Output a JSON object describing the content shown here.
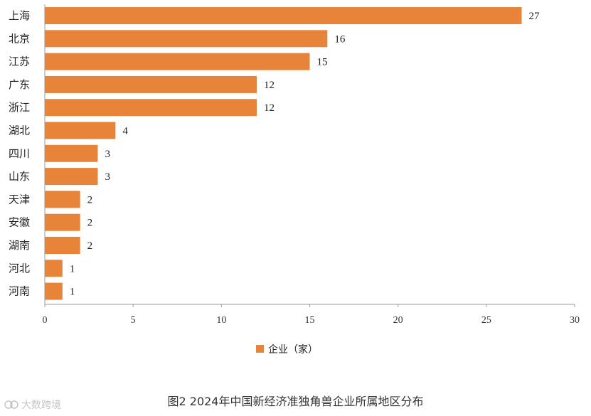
{
  "colors": {
    "bar": "#E8833A",
    "axis": "#999999",
    "text": "#222222"
  },
  "caption": "图2 2024年中国新经济准独角兽企业所属地区分布",
  "watermark": "大数跨境",
  "chart_data": {
    "type": "bar",
    "orientation": "horizontal",
    "categories": [
      "上海",
      "北京",
      "江苏",
      "广东",
      "浙江",
      "湖北",
      "四川",
      "山东",
      "天津",
      "安徽",
      "湖南",
      "河北",
      "河南"
    ],
    "values": [
      27,
      16,
      15,
      12,
      12,
      4,
      3,
      3,
      2,
      2,
      2,
      1,
      1
    ],
    "series": [
      {
        "name": "企业（家）",
        "values": [
          27,
          16,
          15,
          12,
          12,
          4,
          3,
          3,
          2,
          2,
          2,
          1,
          1
        ]
      }
    ],
    "xlim": [
      0,
      30
    ],
    "xticks": [
      0,
      5,
      10,
      15,
      20,
      25,
      30
    ],
    "grid": false,
    "legend": {
      "position": "bottom",
      "label": "企业（家）"
    },
    "data_labels": true
  }
}
